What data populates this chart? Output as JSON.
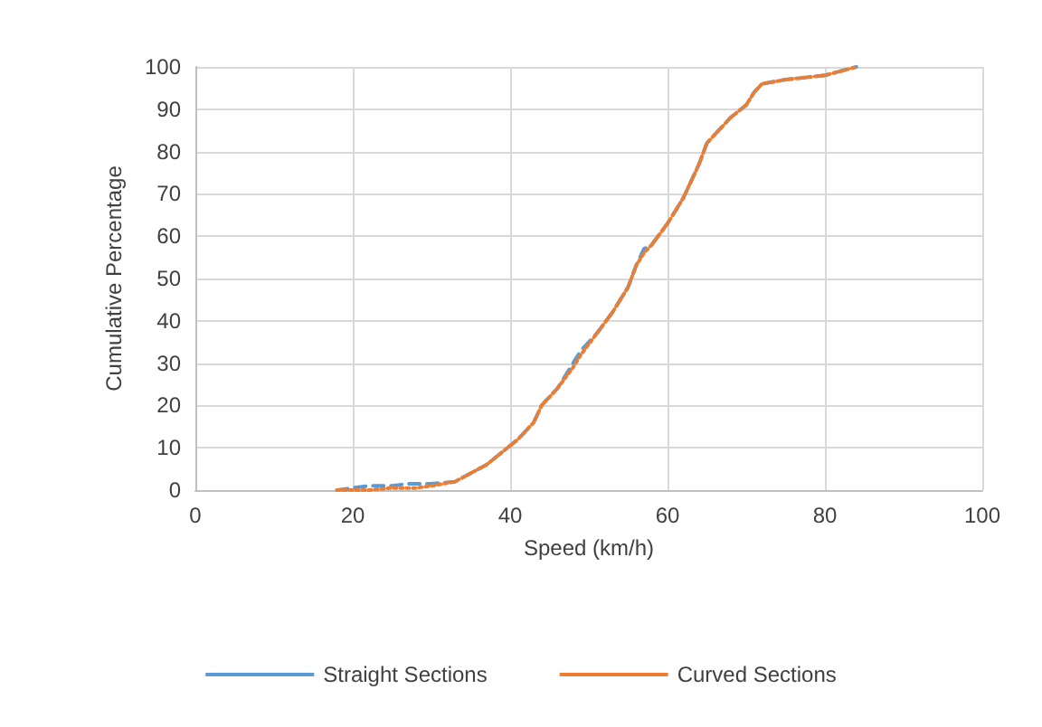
{
  "chart_data": {
    "type": "line",
    "xlabel": "Speed (km/h)",
    "ylabel": "Cumulative Percentage",
    "xlim": [
      0,
      100
    ],
    "xticks": [
      0,
      20,
      40,
      60,
      80,
      100
    ],
    "ylim": [
      0,
      100
    ],
    "yticks": [
      0,
      10,
      20,
      30,
      40,
      50,
      60,
      70,
      80,
      90,
      100
    ],
    "grid": true,
    "legend": "bottom",
    "marker": "none",
    "series": [
      {
        "name": "Straight Sections",
        "color": "#5b9bd5",
        "line_style": "dashed",
        "x": [
          18,
          20,
          22,
          25,
          27,
          30,
          33,
          35,
          37,
          39,
          41,
          43,
          44,
          46,
          48,
          49,
          51,
          53,
          55,
          56,
          57,
          58,
          60,
          62,
          64,
          65,
          67,
          68,
          70,
          71,
          72,
          75,
          80,
          84
        ],
        "values": [
          0,
          0.5,
          1,
          1,
          1.5,
          1.5,
          2,
          4,
          6,
          9,
          12,
          16,
          20,
          24,
          30,
          33,
          37,
          42,
          48,
          53,
          57,
          58,
          63,
          69,
          77,
          82,
          86,
          88,
          91,
          94,
          96,
          97,
          98,
          100
        ]
      },
      {
        "name": "Curved Sections",
        "color": "#ed7d31",
        "line_style": "dotted",
        "x": [
          18,
          22,
          25,
          28,
          30,
          33,
          35,
          37,
          39,
          41,
          43,
          44,
          46,
          48,
          49,
          51,
          53,
          55,
          56,
          57,
          58,
          60,
          62,
          64,
          65,
          67,
          68,
          70,
          71,
          72,
          75,
          80,
          84
        ],
        "values": [
          0,
          0,
          0.5,
          0.5,
          1,
          2,
          4,
          6,
          9,
          12,
          16,
          20,
          24,
          29,
          32,
          37,
          42,
          48,
          53,
          56,
          58,
          63,
          69,
          77,
          82,
          86,
          88,
          91,
          94,
          96,
          97,
          98,
          100
        ]
      }
    ]
  }
}
